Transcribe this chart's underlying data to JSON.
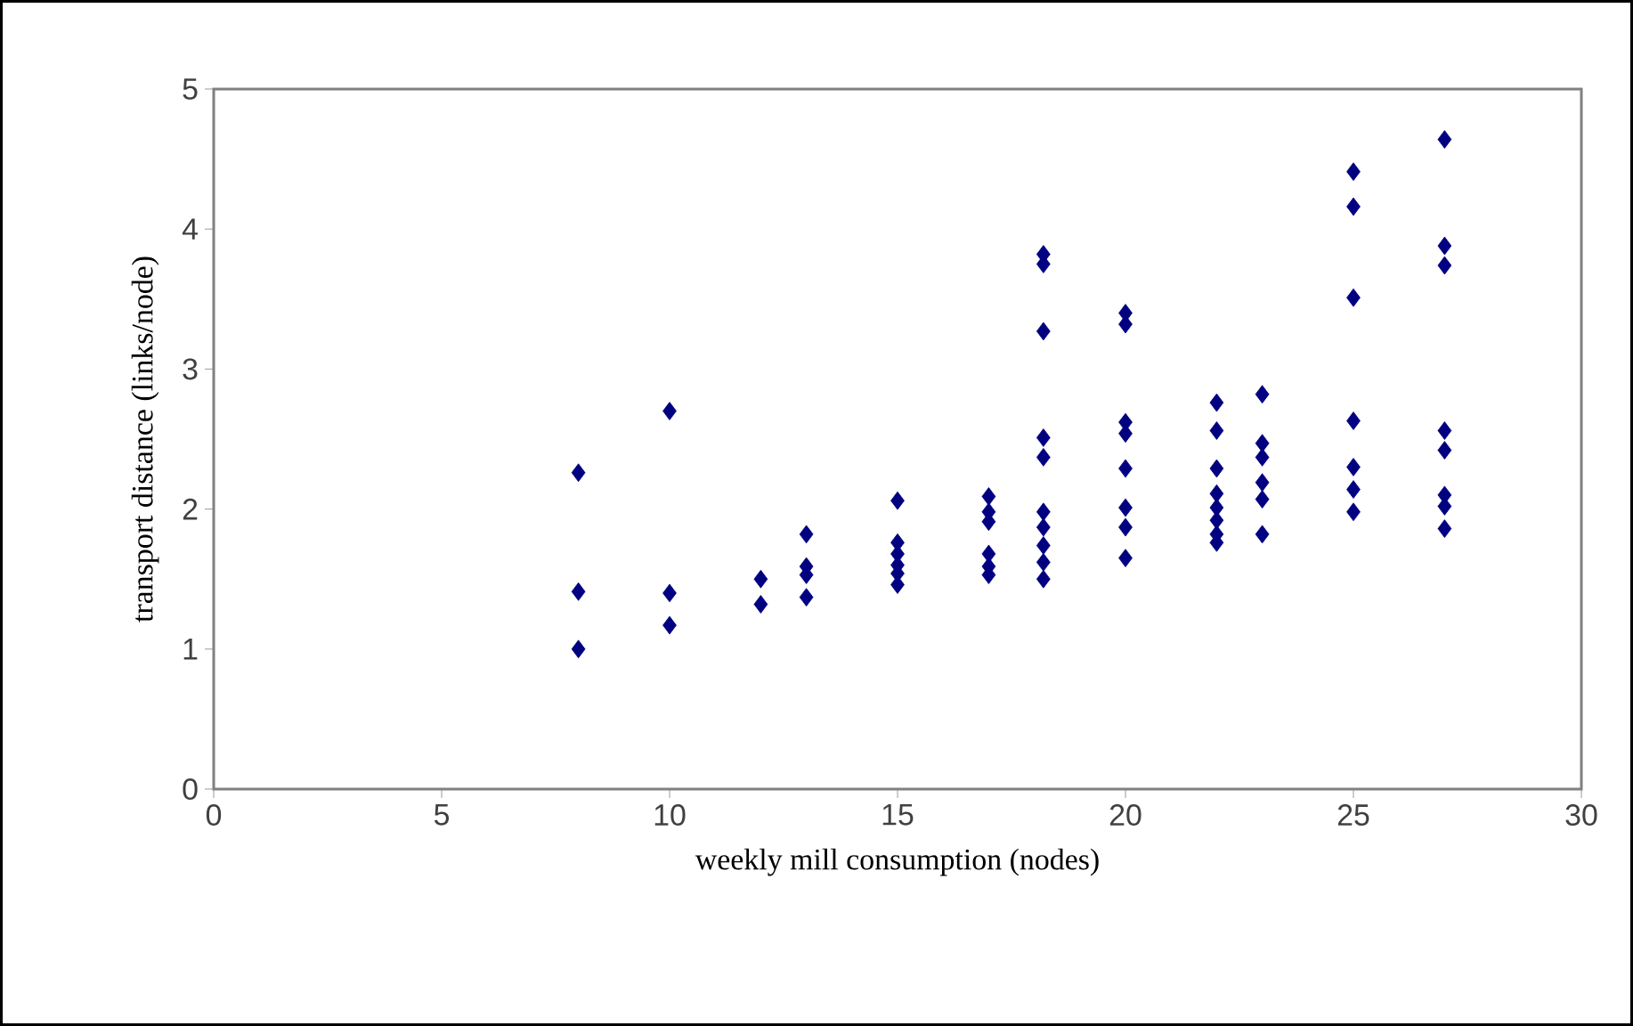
{
  "chart_data": {
    "type": "scatter",
    "xlabel": "weekly mill consumption (nodes)",
    "ylabel": "transport distance  (links/node)",
    "xlim": [
      0,
      30
    ],
    "ylim": [
      0,
      5
    ],
    "xticks": [
      0,
      5,
      10,
      15,
      20,
      25,
      30
    ],
    "yticks": [
      0,
      1,
      2,
      3,
      4,
      5
    ],
    "marker": "diamond",
    "grid": false,
    "series": [
      {
        "color": "#000080",
        "x": [
          8,
          8,
          8,
          10,
          10,
          10,
          12,
          12,
          13,
          13,
          13,
          13,
          15,
          15,
          15,
          15,
          15,
          15,
          17,
          17,
          17,
          17,
          17,
          17,
          18.2,
          18.2,
          18.2,
          18.2,
          18.2,
          18.2,
          18.2,
          18.2,
          18.2,
          18.2,
          20,
          20,
          20,
          20,
          20,
          20,
          20,
          20,
          22,
          22,
          22,
          22,
          22,
          22,
          22,
          22,
          23,
          23,
          23,
          23,
          23,
          23,
          25,
          25,
          25,
          25,
          25,
          25,
          25,
          27,
          27,
          27,
          27,
          27,
          27,
          27,
          27
        ],
        "values": [
          2.26,
          1.41,
          1.0,
          2.7,
          1.4,
          1.17,
          1.5,
          1.32,
          1.82,
          1.59,
          1.53,
          1.37,
          2.06,
          1.76,
          1.68,
          1.6,
          1.54,
          1.46,
          2.09,
          1.98,
          1.91,
          1.68,
          1.59,
          1.53,
          3.82,
          3.75,
          3.27,
          2.51,
          2.37,
          1.98,
          1.87,
          1.74,
          1.62,
          1.5,
          3.4,
          3.32,
          2.62,
          2.54,
          2.29,
          2.01,
          1.87,
          1.65,
          2.76,
          2.56,
          2.29,
          2.11,
          2.01,
          1.92,
          1.82,
          1.76,
          2.82,
          2.47,
          2.37,
          2.19,
          2.07,
          1.82,
          4.41,
          4.16,
          3.51,
          2.63,
          2.3,
          2.14,
          1.98,
          4.64,
          3.88,
          3.74,
          2.56,
          2.42,
          2.1,
          2.02,
          1.86
        ]
      }
    ]
  }
}
